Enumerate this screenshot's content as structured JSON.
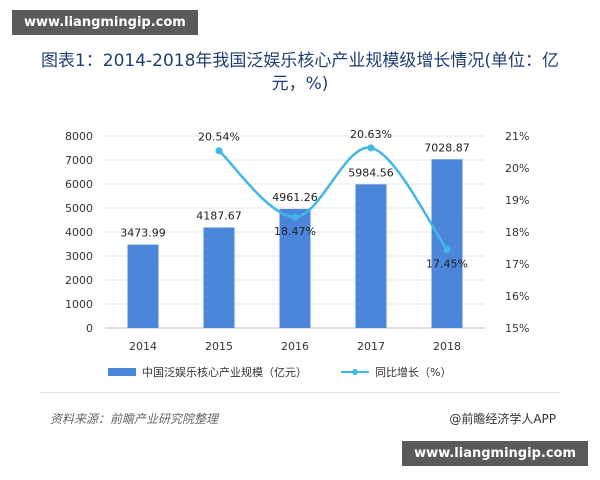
{
  "watermark_top": "www.liangmingip.com",
  "watermark_bottom": "www.liangmingip.com",
  "footer": {
    "source": "资料来源：前瞻产业研究院整理",
    "credit": "@前瞻经济学人APP"
  },
  "colors": {
    "bar": "#4b86db",
    "line": "#40b8e6"
  },
  "chart_data": {
    "type": "bar",
    "title": "图表1：2014-2018年我国泛娱乐核心产业规模级增长情况(单位：亿元，%)",
    "categories": [
      "2014",
      "2015",
      "2016",
      "2017",
      "2018"
    ],
    "ylim": [
      0,
      8000
    ],
    "yticks": [
      "0",
      "1000",
      "2000",
      "3000",
      "4000",
      "5000",
      "6000",
      "7000",
      "8000"
    ],
    "y2lim": [
      15,
      21
    ],
    "y2ticks": [
      "15%",
      "16%",
      "17%",
      "18%",
      "19%",
      "20%",
      "21%"
    ],
    "series": [
      {
        "name": "中国泛娱乐核心产业规模（亿元）",
        "type": "bar",
        "axis": "left",
        "values": [
          3473.99,
          4187.67,
          4961.26,
          5984.56,
          7028.87
        ],
        "labels": [
          "3473.99",
          "4187.67",
          "4961.26",
          "5984.56",
          "7028.87"
        ]
      },
      {
        "name": "同比增长（%）",
        "type": "line",
        "axis": "right",
        "values": [
          null,
          20.54,
          18.47,
          20.63,
          17.45
        ],
        "labels": [
          "",
          "20.54%",
          "18.47%",
          "20.63%",
          "17.45%"
        ]
      }
    ],
    "legend_position": "bottom"
  }
}
